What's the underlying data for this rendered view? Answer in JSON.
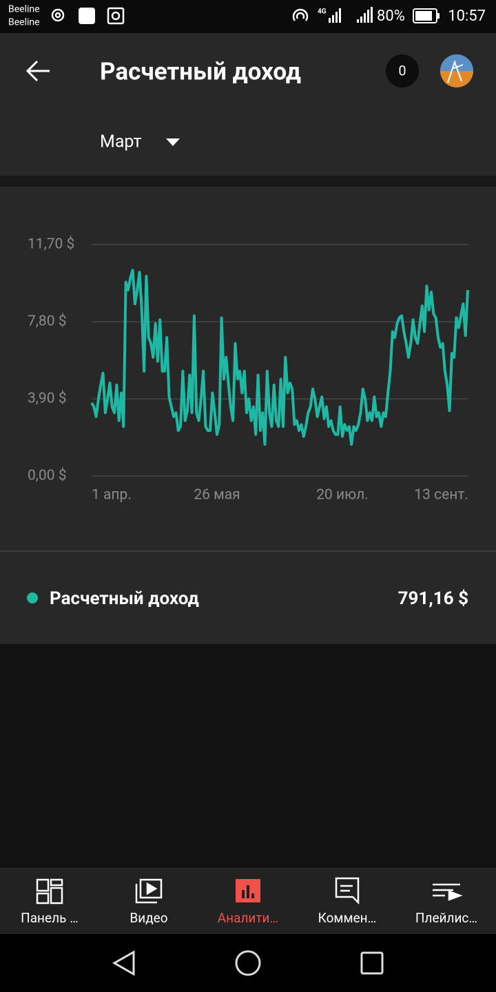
{
  "status_bar": {
    "carrier_1": "Beeline",
    "carrier_2": "Beeline",
    "network": "4G",
    "battery": "80%",
    "time": "10:57"
  },
  "header": {
    "title": "Расчетный доход",
    "badge": "0",
    "period": "Март"
  },
  "chart_data": {
    "type": "line",
    "categories": [
      "1 апр.",
      null,
      null,
      null,
      null,
      null,
      null,
      null,
      null,
      null,
      null,
      null,
      null,
      null,
      null,
      null,
      null,
      null,
      null,
      null,
      null,
      null,
      null,
      null,
      null,
      null,
      null,
      null,
      null,
      null,
      null,
      null,
      null,
      null,
      null,
      null,
      null,
      null,
      null,
      null,
      null,
      null,
      null,
      null,
      null,
      null,
      null,
      null,
      null,
      null,
      null,
      null,
      null,
      null,
      null,
      "26 мая",
      null,
      null,
      null,
      null,
      null,
      null,
      null,
      null,
      null,
      null,
      null,
      null,
      null,
      null,
      null,
      null,
      null,
      null,
      null,
      null,
      null,
      null,
      null,
      null,
      null,
      null,
      null,
      null,
      null,
      null,
      null,
      null,
      null,
      null,
      null,
      null,
      null,
      null,
      null,
      null,
      null,
      null,
      null,
      null,
      null,
      null,
      null,
      null,
      null,
      null,
      null,
      null,
      null,
      null,
      "20 июл.",
      null,
      null,
      null,
      null,
      null,
      null,
      null,
      null,
      null,
      null,
      null,
      null,
      null,
      null,
      null,
      null,
      null,
      null,
      null,
      null,
      null,
      null,
      null,
      null,
      null,
      null,
      null,
      null,
      null,
      null,
      null,
      null,
      null,
      null,
      null,
      null,
      null,
      null,
      null,
      null,
      null,
      null,
      null,
      null,
      null,
      null,
      null,
      null,
      null,
      null,
      null,
      null,
      null,
      null,
      "13 сент."
    ],
    "series": [
      {
        "name": "Расчетный доход",
        "color": "#1fb8a5",
        "values": [
          3.7,
          3.5,
          3.0,
          3.9,
          4.6,
          5.2,
          3.2,
          3.9,
          4.7,
          3.5,
          3.2,
          4.6,
          2.8,
          4.2,
          2.5,
          9.8,
          9.4,
          10.0,
          10.4,
          8.7,
          9.4,
          10.3,
          8.4,
          5.3,
          10.1,
          7.0,
          6.7,
          6.0,
          7.7,
          5.8,
          7.9,
          5.3,
          5.3,
          7.0,
          4.0,
          3.5,
          3.0,
          3.2,
          2.3,
          2.5,
          5.3,
          2.8,
          3.3,
          5.1,
          3.2,
          8.1,
          3.2,
          2.8,
          3.9,
          5.3,
          2.5,
          2.3,
          2.3,
          4.2,
          3.2,
          2.1,
          2.6,
          8.0,
          4.9,
          6.0,
          4.7,
          3.5,
          2.8,
          6.7,
          4.9,
          5.3,
          4.2,
          5.3,
          3.2,
          3.9,
          2.8,
          3.5,
          2.1,
          5.1,
          2.3,
          3.2,
          1.6,
          5.3,
          3.2,
          2.5,
          4.6,
          2.8,
          2.5,
          4.9,
          2.5,
          6.0,
          4.2,
          4.7,
          4.4,
          2.6,
          2.8,
          2.3,
          2.6,
          2.0,
          2.5,
          3.2,
          3.5,
          4.4,
          3.9,
          3.0,
          3.5,
          4.0,
          2.9,
          3.5,
          2.5,
          2.8,
          2.3,
          2.1,
          2.1,
          3.5,
          2.0,
          2.6,
          2.3,
          2.5,
          1.6,
          2.5,
          2.3,
          2.6,
          3.2,
          4.4,
          3.9,
          2.8,
          3.2,
          2.8,
          4.0,
          3.0,
          3.2,
          2.5,
          3.2,
          3.0,
          4.2,
          5.3,
          7.3,
          7.0,
          7.7,
          8.0,
          8.1,
          7.3,
          6.7,
          6.0,
          6.7,
          7.9,
          7.0,
          6.7,
          7.7,
          8.6,
          7.3,
          9.6,
          8.4,
          9.3,
          8.2,
          8.0,
          7.0,
          6.5,
          6.7,
          5.3,
          4.6,
          3.3,
          6.2,
          6.0,
          8.0,
          7.5,
          8.1,
          8.7,
          7.1,
          9.4
        ]
      }
    ],
    "ylim": [
      0,
      11.7
    ],
    "yticks": [
      {
        "value": 0,
        "label": "0,00 $"
      },
      {
        "value": 3.9,
        "label": "3,90 $"
      },
      {
        "value": 7.8,
        "label": "7,80 $"
      },
      {
        "value": 11.7,
        "label": "11,70 $"
      }
    ],
    "grid": true,
    "total": {
      "value": 791.16,
      "label": "791,16 $"
    }
  },
  "bottom_nav": {
    "active": 2,
    "tabs": [
      "Панель …",
      "Видео",
      "Аналити…",
      "Коммен…",
      "Плейлис…"
    ]
  }
}
